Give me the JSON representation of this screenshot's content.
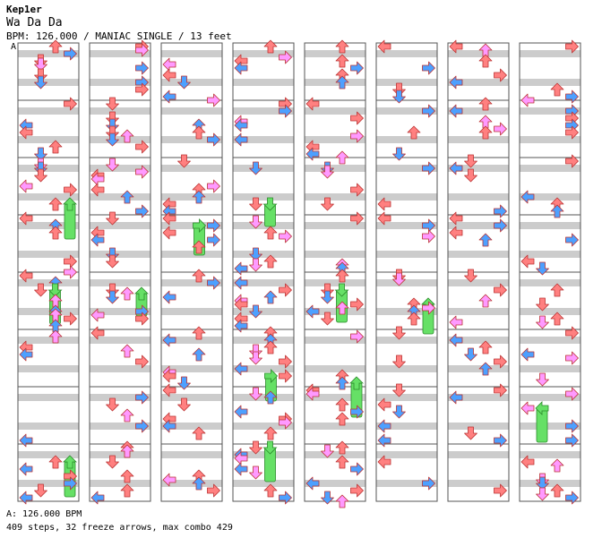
{
  "header": {
    "artist": "Kep1er",
    "title": "Wa Da Da",
    "meta": "BPM: 126.000 / MANIAC SINGLE / 13 feet"
  },
  "section_marker": "A",
  "footer": {
    "bpm_line": "A: 126.000 BPM",
    "stats_line": "409 steps, 32 freeze arrows, max combo 429"
  },
  "colors": {
    "quarter": "#ff8080",
    "eighth": "#4da0ff",
    "sixteenth": "#ff99ff",
    "freeze": "#66e066",
    "band": "#cccccc",
    "border": "#555555"
  },
  "chart_data": {
    "type": "stepchart",
    "columns": 8,
    "measures_per_column": 8,
    "lanes": [
      "left",
      "down",
      "up",
      "right"
    ],
    "steps": 409,
    "freeze_arrows": 32,
    "max_combo": 429,
    "bpm": 126.0,
    "difficulty": "MANIAC",
    "feet": 13
  }
}
